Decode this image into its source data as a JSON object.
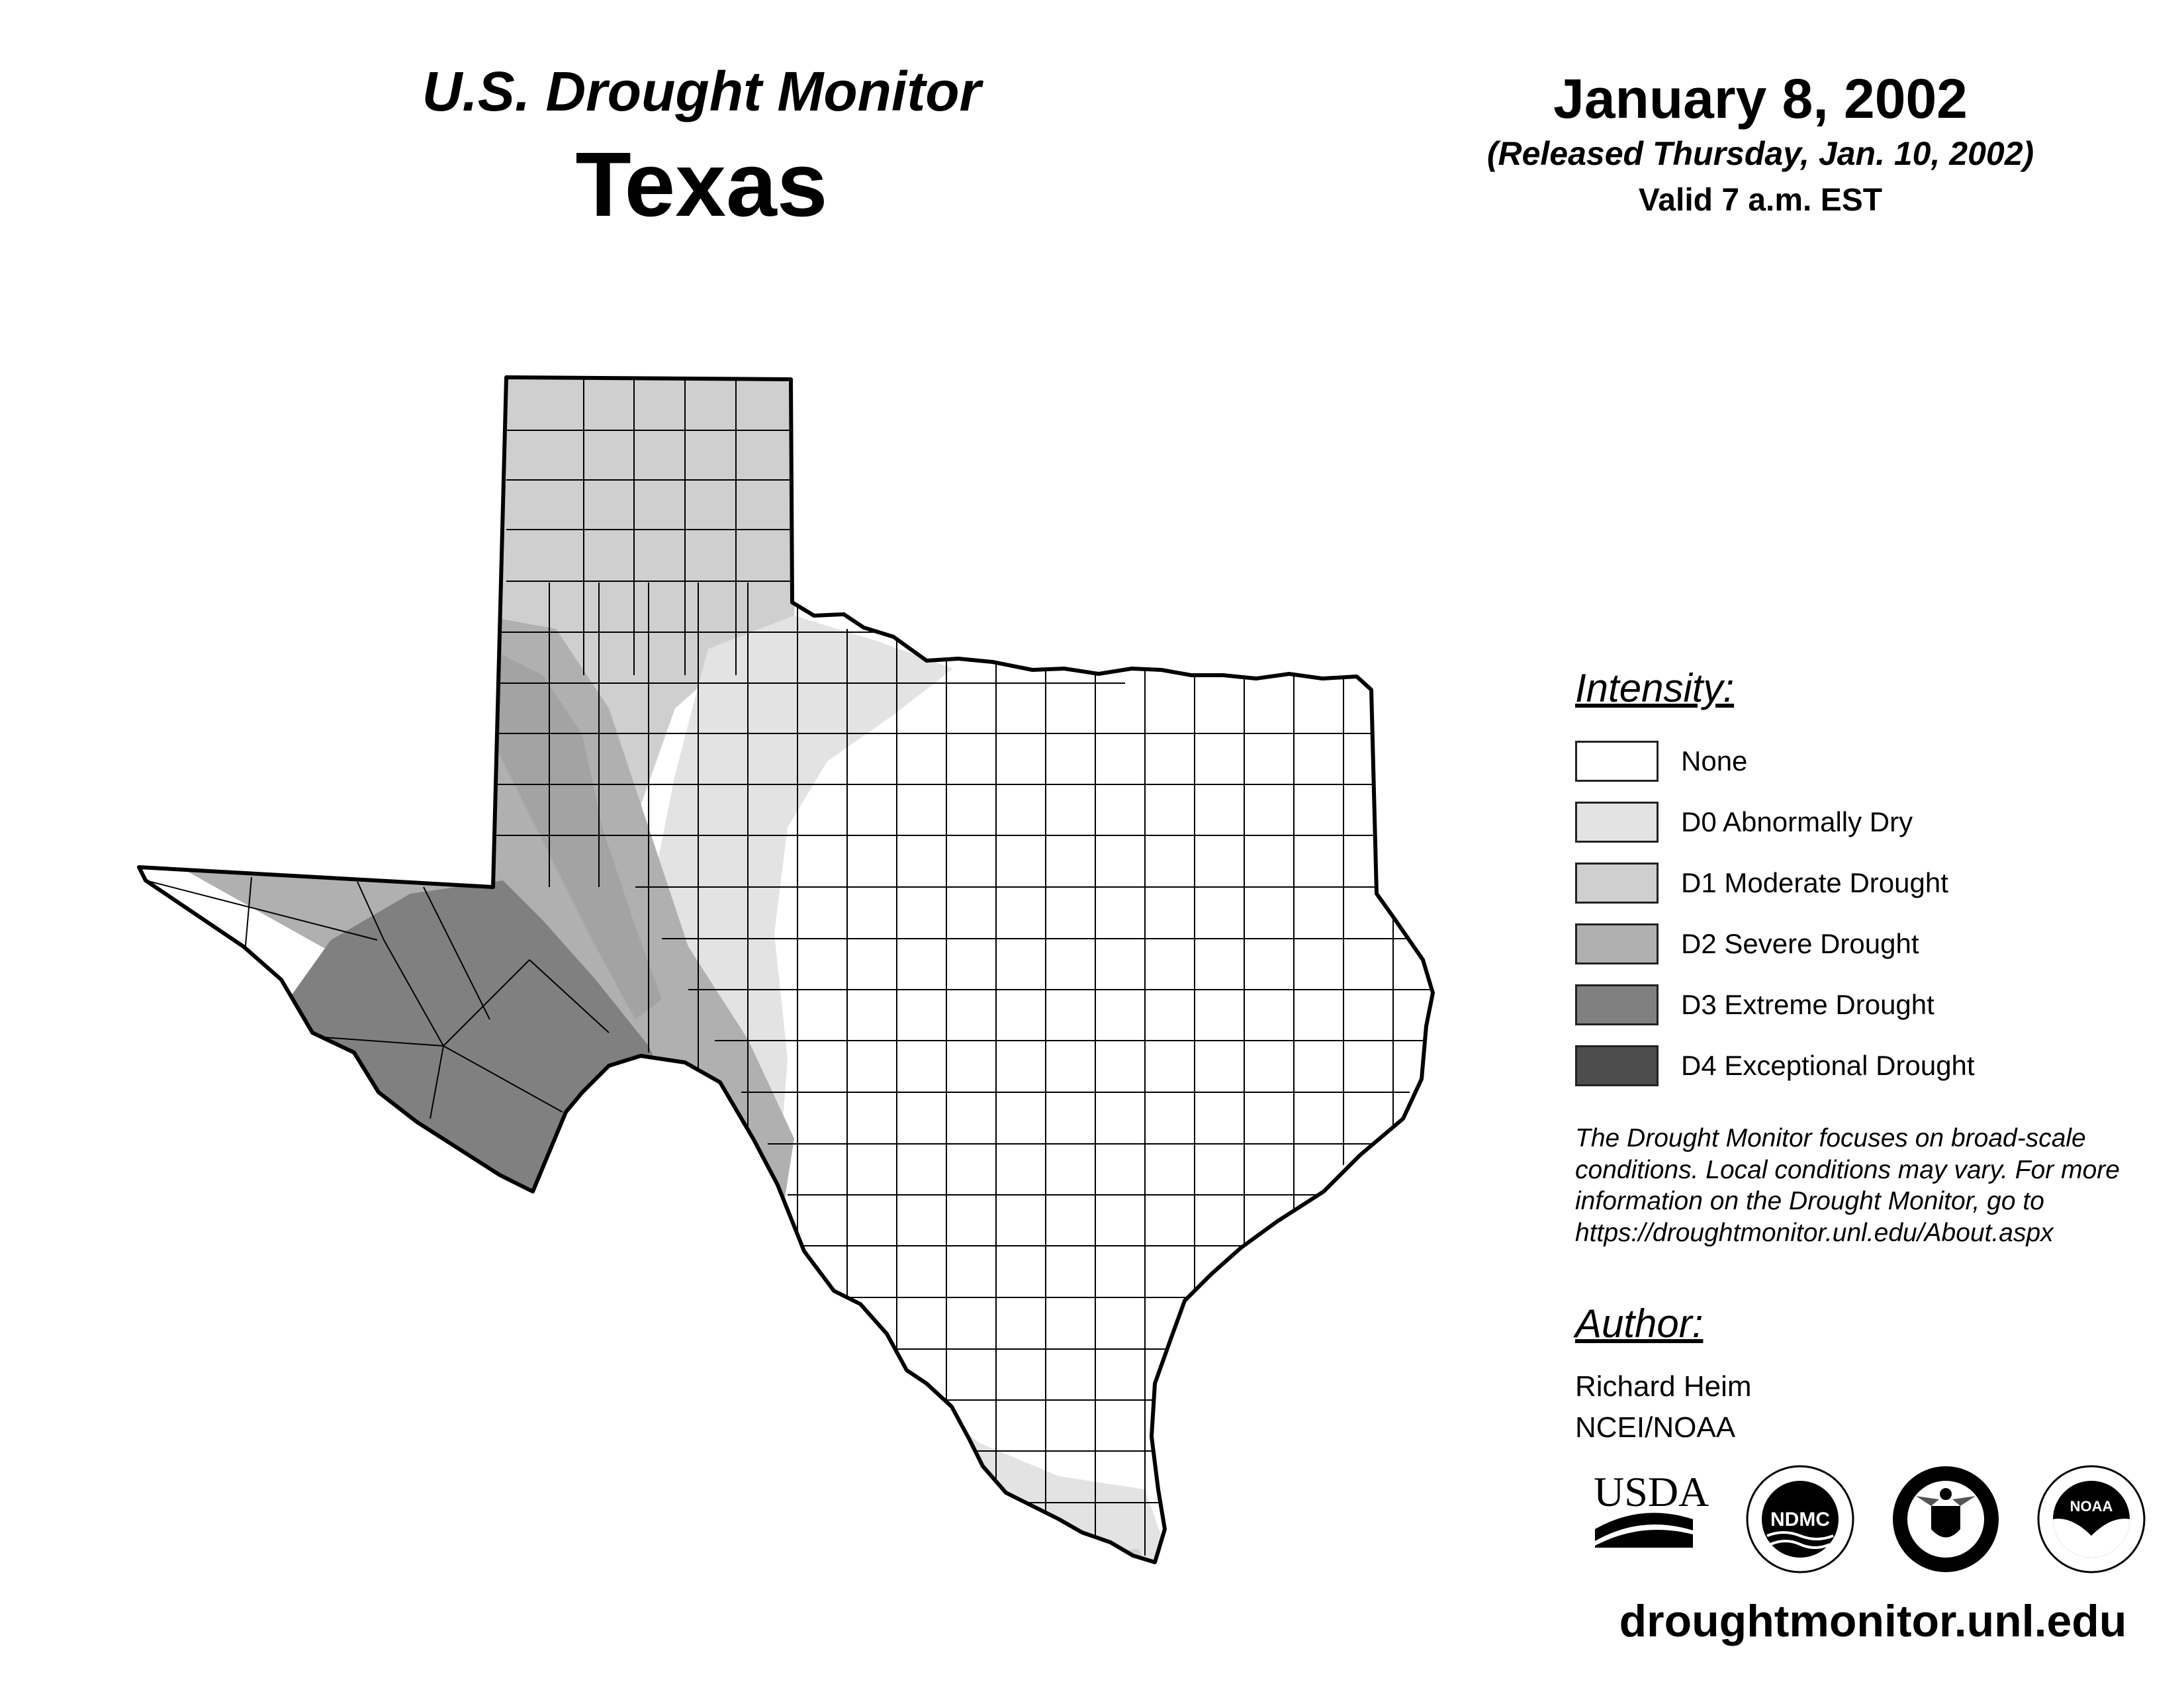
{
  "header": {
    "title_line1": "U.S. Drought Monitor",
    "title_line2": "Texas",
    "date": "January 8, 2002",
    "released": "(Released Thursday, Jan. 10, 2002)",
    "valid": "Valid 7 a.m. EST"
  },
  "legend": {
    "title": "Intensity:",
    "items": [
      {
        "label": "None",
        "color": "#ffffff"
      },
      {
        "label": "D0 Abnormally Dry",
        "color": "#e3e3e3"
      },
      {
        "label": "D1 Moderate Drought",
        "color": "#cfcfcf"
      },
      {
        "label": "D2 Severe Drought",
        "color": "#b0b0b0"
      },
      {
        "label": "D3 Extreme Drought",
        "color": "#808080"
      },
      {
        "label": "D4 Exceptional Drought",
        "color": "#4d4d4d"
      }
    ],
    "note": "The Drought Monitor focuses on broad-scale conditions. Local conditions may vary. For more information on the Drought Monitor, go to https://droughtmonitor.unl.edu/About.aspx"
  },
  "author": {
    "title": "Author:",
    "name": "Richard Heim",
    "org": "NCEI/NOAA"
  },
  "logos": {
    "usda": "USDA",
    "ndmc": "NDMC",
    "doc": "Department of Commerce seal",
    "noaa": "NOAA"
  },
  "footer": {
    "website": "droughtmonitor.unl.edu"
  }
}
